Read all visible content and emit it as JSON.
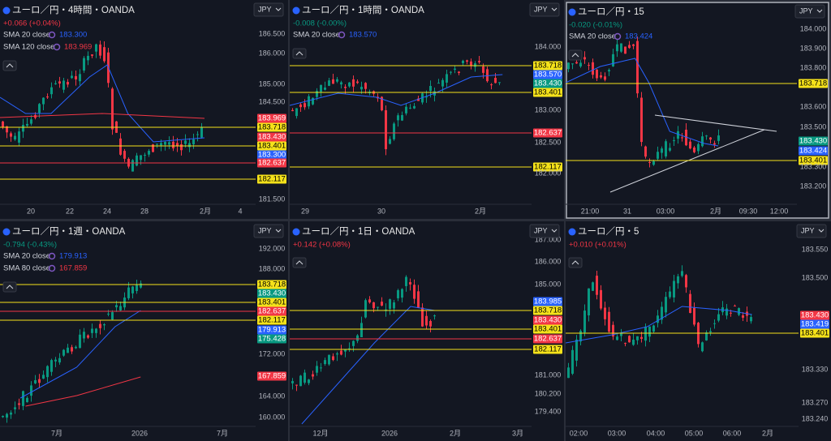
{
  "panels": [
    {
      "title": "ユーロ／円・4時間・OANDA",
      "currency": "JPY",
      "change": "+0.066 (+0.04%)",
      "change_color": "#f23645",
      "indicators": [
        {
          "label": "SMA 20 close",
          "value": "183.300",
          "color": "#2962ff"
        },
        {
          "label": "SMA 120 close",
          "value": "183.969",
          "color": "#f23645"
        }
      ],
      "price_labels": [
        "186.500",
        "186.000",
        "185.000",
        "184.500",
        "181.500"
      ],
      "tags": [
        {
          "text": "183.969",
          "color": "#f23645"
        },
        {
          "text": "183.718",
          "color": "#f5e21a"
        },
        {
          "text": "183.430",
          "color": "#f23645"
        },
        {
          "text": "183.401",
          "color": "#f5e21a"
        },
        {
          "text": "183.300",
          "color": "#2962ff"
        },
        {
          "text": "182.637",
          "color": "#f23645"
        },
        {
          "text": "182.117",
          "color": "#f5e21a"
        }
      ],
      "time_labels": [
        "20",
        "22",
        "24",
        "28",
        "2月",
        "4"
      ]
    },
    {
      "title": "ユーロ／円・1時間・OANDA",
      "currency": "JPY",
      "change": "-0.008 (-0.00%)",
      "change_color": "#089981",
      "indicators": [
        {
          "label": "SMA 20 close",
          "value": "183.570",
          "color": "#2962ff"
        }
      ],
      "price_labels": [
        "184.000",
        "183.000",
        "182.500",
        "182.000"
      ],
      "tags": [
        {
          "text": "183.718",
          "color": "#f5e21a"
        },
        {
          "text": "183.570",
          "color": "#2962ff"
        },
        {
          "text": "183.430",
          "color": "#089981"
        },
        {
          "text": "183.401",
          "color": "#f5e21a"
        },
        {
          "text": "182.637",
          "color": "#f23645"
        },
        {
          "text": "182.117",
          "color": "#f5e21a"
        }
      ],
      "time_labels": [
        "29",
        "30",
        "2月"
      ]
    },
    {
      "title": "ユーロ／円・15",
      "currency": "JPY",
      "change": "-0.020 (-0.01%)",
      "change_color": "#089981",
      "indicators": [
        {
          "label": "SMA 20 close",
          "value": "183.424",
          "color": "#2962ff"
        }
      ],
      "price_labels": [
        "184.000",
        "183.900",
        "183.800",
        "183.600",
        "183.500",
        "183.300",
        "183.200"
      ],
      "tags": [
        {
          "text": "183.718",
          "color": "#f5e21a"
        },
        {
          "text": "183.430",
          "color": "#089981"
        },
        {
          "text": "183.424",
          "color": "#2962ff"
        },
        {
          "text": "183.401",
          "color": "#f5e21a"
        }
      ],
      "time_labels": [
        "21:00",
        "31",
        "03:00",
        "2月",
        "09:30",
        "12:00"
      ]
    },
    {
      "title": "ユーロ／円・1週・OANDA",
      "currency": "JPY",
      "change": "-0.794 (-0.43%)",
      "change_color": "#089981",
      "indicators": [
        {
          "label": "SMA 20 close",
          "value": "179.913",
          "color": "#2962ff"
        },
        {
          "label": "SMA 80 close",
          "value": "167.859",
          "color": "#f23645"
        }
      ],
      "price_labels": [
        "192.000",
        "188.000",
        "172.000",
        "164.000",
        "160.000"
      ],
      "tags": [
        {
          "text": "183.718",
          "color": "#f5e21a"
        },
        {
          "text": "183.430",
          "color": "#089981"
        },
        {
          "text": "183.401",
          "color": "#f5e21a"
        },
        {
          "text": "182.637",
          "color": "#f23645"
        },
        {
          "text": "182.117",
          "color": "#f5e21a"
        },
        {
          "text": "179.913",
          "color": "#2962ff"
        },
        {
          "text": "175.428",
          "color": "#089981"
        },
        {
          "text": "167.859",
          "color": "#f23645"
        }
      ],
      "time_labels": [
        "7月",
        "2026",
        "7月"
      ]
    },
    {
      "title": "ユーロ／円・1日・OANDA",
      "currency": "JPY",
      "change": "+0.142 (+0.08%)",
      "change_color": "#f23645",
      "indicators": [],
      "price_labels": [
        "187.000",
        "186.000",
        "185.000",
        "181.000",
        "180.200",
        "179.400"
      ],
      "tags": [
        {
          "text": "183.985",
          "color": "#2962ff"
        },
        {
          "text": "183.718",
          "color": "#f5e21a"
        },
        {
          "text": "183.430",
          "color": "#f23645"
        },
        {
          "text": "183.401",
          "color": "#f5e21a"
        },
        {
          "text": "182.637",
          "color": "#f23645"
        },
        {
          "text": "182.117",
          "color": "#f5e21a"
        }
      ],
      "time_labels": [
        "12月",
        "2026",
        "2月",
        "3月"
      ]
    },
    {
      "title": "ユーロ／円・5",
      "currency": "JPY",
      "change": "+0.010 (+0.01%)",
      "change_color": "#f23645",
      "indicators": [],
      "price_labels": [
        "183.550",
        "183.500",
        "183.330",
        "183.270",
        "183.240"
      ],
      "tags": [
        {
          "text": "183.430",
          "color": "#f23645"
        },
        {
          "text": "183.419",
          "color": "#2962ff"
        },
        {
          "text": "183.401",
          "color": "#f5e21a"
        }
      ],
      "time_labels": [
        "02:00",
        "03:00",
        "04:00",
        "05:00",
        "06:00",
        "2月"
      ]
    }
  ]
}
